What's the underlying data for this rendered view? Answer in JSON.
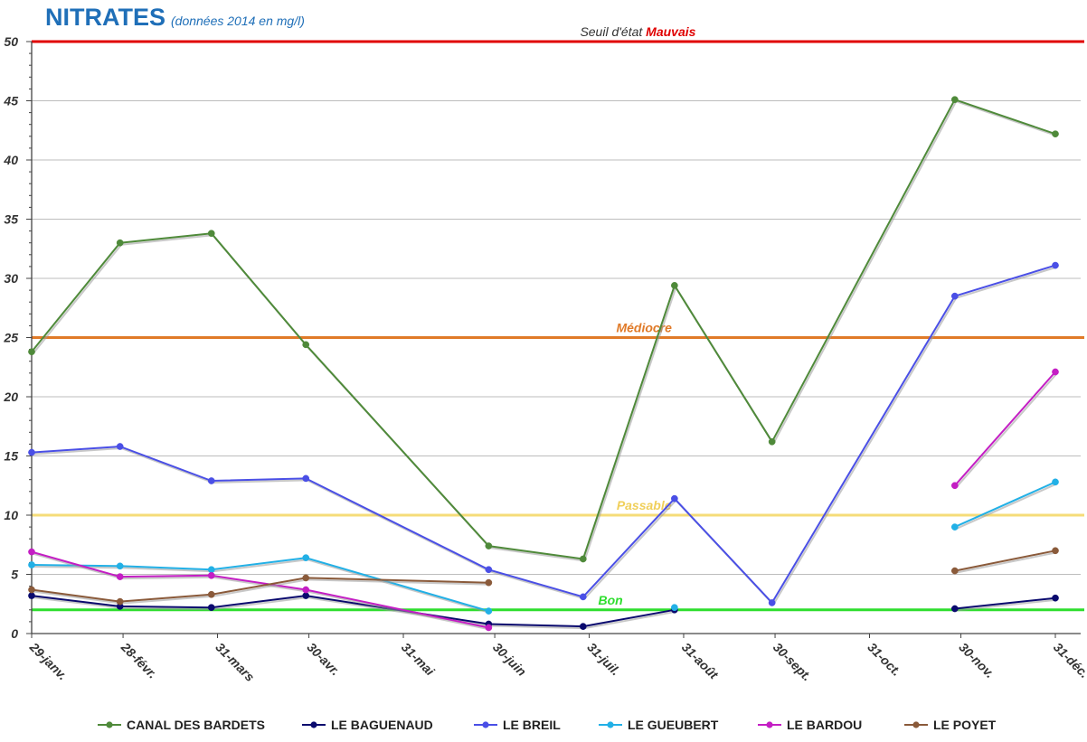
{
  "chart_data": {
    "type": "line",
    "title": "NITRATES",
    "subtitle": "(données 2014 en mg/l)",
    "xlabel": "",
    "ylabel": "",
    "categories": [
      "29-janv.",
      "28-févr.",
      "31-mars",
      "30-avr.",
      "31-mai",
      "30-juin",
      "31-juil.",
      "31-août",
      "30-sept.",
      "31-oct.",
      "30-nov.",
      "31-déc."
    ],
    "x_days": [
      29,
      59,
      90,
      120,
      151,
      181,
      212,
      243,
      273,
      304,
      334,
      365
    ],
    "ylim": [
      0,
      50
    ],
    "yticks": [
      0,
      5,
      10,
      15,
      20,
      25,
      30,
      35,
      40,
      45,
      50
    ],
    "grid": true,
    "legend": "bottom",
    "series": [
      {
        "name": "CANAL DES BARDETS",
        "color": "#4f8a3a",
        "points": [
          [
            29,
            23.8
          ],
          [
            58,
            33.0
          ],
          [
            88,
            33.8
          ],
          [
            119,
            24.4
          ],
          [
            179,
            7.4
          ],
          [
            210,
            6.3
          ],
          [
            240,
            29.4
          ],
          [
            272,
            16.2
          ],
          [
            332,
            45.1
          ],
          [
            365,
            42.2
          ]
        ]
      },
      {
        "name": "LE BAGUENAUD",
        "color": "#0a0a6e",
        "points": [
          [
            29,
            3.2
          ],
          [
            58,
            2.3
          ],
          [
            88,
            2.2
          ],
          [
            119,
            3.2
          ],
          [
            179,
            0.8
          ],
          [
            210,
            0.6
          ],
          [
            240,
            2.0
          ],
          null,
          [
            332,
            2.1
          ],
          [
            365,
            3.0
          ]
        ]
      },
      {
        "name": "LE BREIL",
        "color": "#4a4fe6",
        "points": [
          [
            29,
            15.3
          ],
          [
            58,
            15.8
          ],
          [
            88,
            12.9
          ],
          [
            119,
            13.1
          ],
          [
            179,
            5.4
          ],
          [
            210,
            3.1
          ],
          [
            240,
            11.4
          ],
          [
            272,
            2.6
          ],
          [
            332,
            28.5
          ],
          [
            365,
            31.1
          ]
        ]
      },
      {
        "name": "LE GUEUBERT",
        "color": "#22b0e6",
        "points": [
          [
            29,
            5.8
          ],
          [
            58,
            5.7
          ],
          [
            88,
            5.4
          ],
          [
            119,
            6.4
          ],
          [
            179,
            1.9
          ],
          null,
          [
            240,
            2.2
          ],
          null,
          [
            332,
            9.0
          ],
          [
            365,
            12.8
          ]
        ]
      },
      {
        "name": "LE BARDOU",
        "color": "#c41ec4",
        "points": [
          [
            29,
            6.9
          ],
          [
            58,
            4.8
          ],
          [
            88,
            4.9
          ],
          [
            119,
            3.7
          ],
          [
            179,
            0.5
          ],
          null,
          [
            332,
            12.5
          ],
          [
            365,
            22.1
          ]
        ]
      },
      {
        "name": "LE POYET",
        "color": "#8a5a3a",
        "points": [
          [
            29,
            3.7
          ],
          [
            58,
            2.7
          ],
          [
            88,
            3.3
          ],
          [
            119,
            4.7
          ],
          [
            179,
            4.3
          ],
          null,
          [
            332,
            5.3
          ],
          [
            365,
            7.0
          ]
        ]
      }
    ],
    "thresholds": [
      {
        "value": 50,
        "color": "#e00000",
        "label_prefix": "Seuil d'état ",
        "label": "Mauvais",
        "label_color": "#e00000",
        "prefix_color": "#333333",
        "label_day": 228
      },
      {
        "value": 25,
        "color": "#e07a28",
        "label": "Médiocre",
        "label_color": "#e07a28",
        "label_day": 230
      },
      {
        "value": 10,
        "color": "#f5dc78",
        "label": "Passable",
        "label_color": "#f0cf5a",
        "label_day": 230
      },
      {
        "value": 2,
        "color": "#2ede2e",
        "label": "Bon",
        "label_color": "#2ede2e",
        "label_day": 219
      }
    ]
  }
}
